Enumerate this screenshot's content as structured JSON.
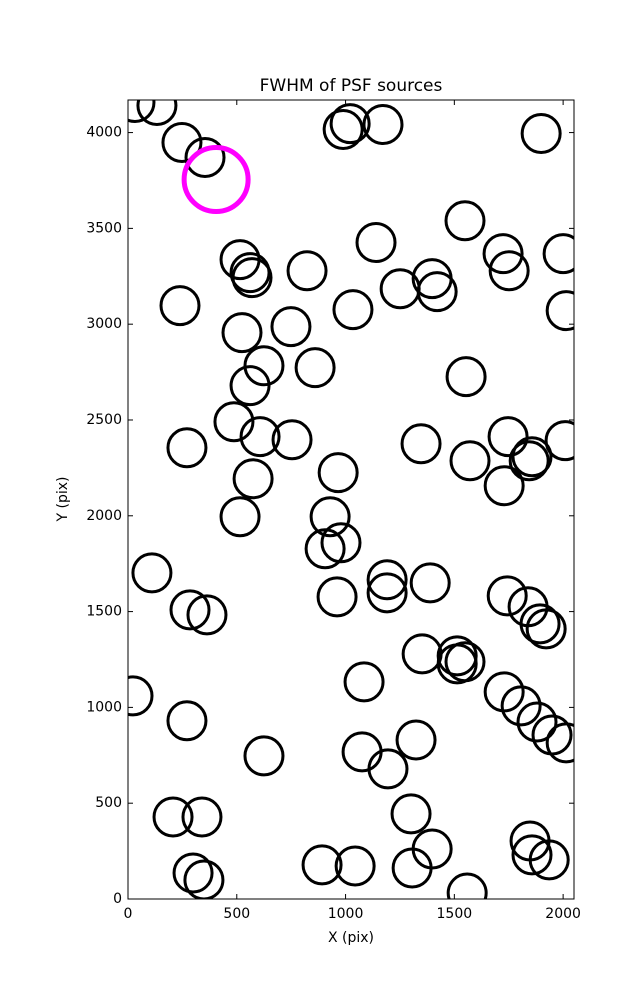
{
  "chart_data": {
    "type": "scatter",
    "title": "FWHM of PSF sources",
    "xlabel": "X (pix)",
    "ylabel": "Y (pix)",
    "xlim": [
      0,
      2050
    ],
    "ylim": [
      0,
      4170
    ],
    "xticks": [
      0,
      500,
      1000,
      1500,
      2000
    ],
    "yticks": [
      0,
      500,
      1000,
      1500,
      2000,
      2500,
      3000,
      3500,
      4000
    ],
    "grid": false,
    "series": [
      {
        "color": "#000000",
        "x": [
          32,
          133,
          248,
          354,
          989,
          1021,
          1172,
          1899,
          1549,
          1140,
          1724,
          2000,
          515,
          561,
          570,
          823,
          1398,
          1752,
          1251,
          1421,
          239,
          1034,
          2014,
          524,
          749,
          625,
          860,
          561,
          1554,
          487,
          607,
          754,
          271,
          1347,
          1747,
          2009,
          1572,
          1857,
          1844,
          1729,
          966,
          575,
          929,
          515,
          979,
          906,
          110,
          1191,
          1389,
          1191,
          961,
          285,
          363,
          1743,
          1839,
          1894,
          1922,
          1513,
          1352,
          1513,
          1549,
          1085,
          23,
          1729,
          1807,
          271,
          1880,
          1949,
          2014,
          1324,
          625,
          1076,
          1195,
          207,
          340,
          1301,
          1398,
          1848,
          1857,
          1936,
          892,
          1044,
          1306,
          299,
          349,
          1559
        ],
        "y": [
          4157,
          4141,
          3948,
          3870,
          4016,
          4047,
          4042,
          3995,
          3540,
          3426,
          3368,
          3368,
          3337,
          3269,
          3243,
          3279,
          3238,
          3279,
          3185,
          3170,
          3097,
          3076,
          3071,
          2956,
          2987,
          2783,
          2773,
          2679,
          2726,
          2491,
          2413,
          2397,
          2355,
          2376,
          2413,
          2392,
          2287,
          2308,
          2287,
          2157,
          2225,
          2193,
          1995,
          1995,
          1859,
          1828,
          1702,
          1666,
          1650,
          1598,
          1577,
          1509,
          1483,
          1582,
          1525,
          1436,
          1410,
          1269,
          1279,
          1227,
          1238,
          1133,
          1060,
          1081,
          1008,
          930,
          924,
          856,
          815,
          830,
          747,
          768,
          679,
          428,
          428,
          444,
          261,
          303,
          230,
          204,
          178,
          172,
          162,
          136,
          99,
          31
        ]
      },
      {
        "color": "#ff00ff",
        "x": [
          405
        ],
        "y": [
          3755
        ]
      }
    ]
  }
}
